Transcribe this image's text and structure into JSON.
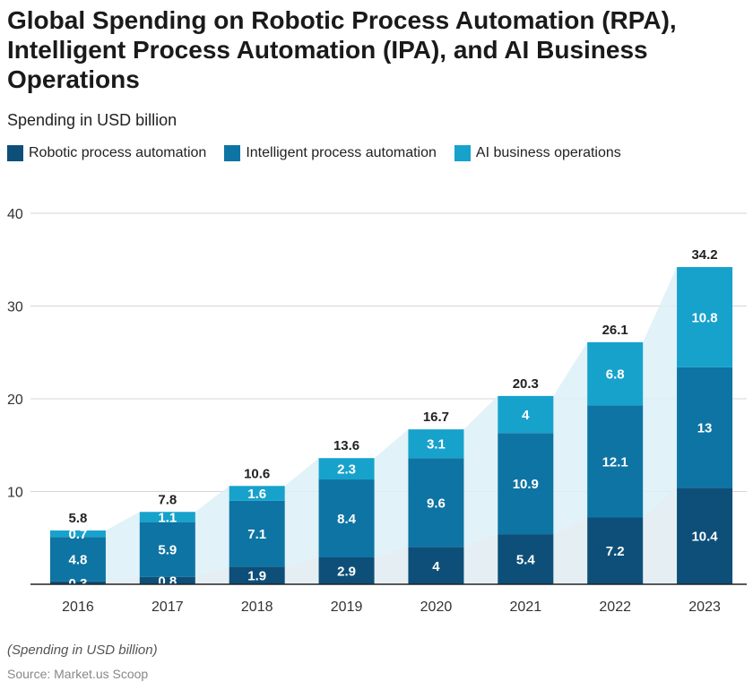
{
  "header": {
    "title": "Global Spending on Robotic Process Automation (RPA), Intelligent Process Automation (IPA), and AI Business Operations",
    "subtitle": "Spending in USD billion"
  },
  "footer": {
    "note": "(Spending in USD billion)",
    "source": "Source: Market.us Scoop"
  },
  "colors": {
    "rpa": "#0d4f78",
    "ipa": "#0e74a3",
    "ai": "#17a2cc",
    "area": "#dcf0f7",
    "grid": "#d6d6d6",
    "axis": "#222222"
  },
  "chart_data": {
    "type": "bar",
    "stacked": true,
    "categories": [
      "2016",
      "2017",
      "2018",
      "2019",
      "2020",
      "2021",
      "2022",
      "2023"
    ],
    "series": [
      {
        "name": "Robotic process automation",
        "values": [
          0.3,
          0.8,
          1.9,
          2.9,
          4,
          5.4,
          7.2,
          10.4
        ]
      },
      {
        "name": "Intelligent process automation",
        "values": [
          4.8,
          5.9,
          7.1,
          8.4,
          9.6,
          10.9,
          12.1,
          13
        ]
      },
      {
        "name": "AI business operations",
        "values": [
          0.7,
          1.1,
          1.6,
          2.3,
          3.1,
          4,
          6.8,
          10.8
        ]
      }
    ],
    "totals": [
      "5.8",
      "7.8",
      "10.6",
      "13.6",
      "16.7",
      "20.3",
      "26.1",
      "34.2"
    ],
    "ylim": [
      0,
      40
    ],
    "yticks": [
      0,
      10,
      20,
      30,
      40
    ],
    "ytick_labels": [
      "",
      "10",
      "20",
      "30",
      "40"
    ],
    "grid": true,
    "legend": "top-left",
    "xlabel": "",
    "ylabel": ""
  }
}
